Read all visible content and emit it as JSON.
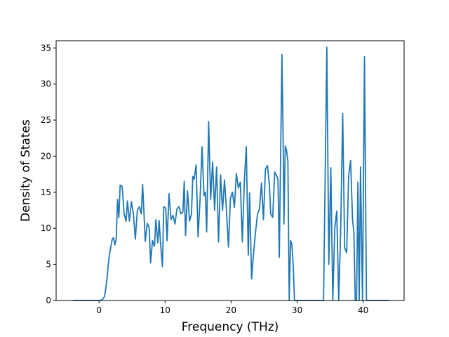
{
  "chart_data": {
    "type": "line",
    "title": "",
    "xlabel": "Frequency (THz)",
    "ylabel": "Density of States",
    "xlim": [
      -6.5,
      46.2
    ],
    "ylim": [
      0,
      36
    ],
    "xticks": [
      0,
      10,
      20,
      30,
      40
    ],
    "yticks": [
      0,
      5,
      10,
      15,
      20,
      25,
      30,
      35
    ],
    "grid": false,
    "legend": "none",
    "series": [
      {
        "color": "#1f77b4",
        "points": [
          [
            -4,
            0
          ],
          [
            -2,
            0
          ],
          [
            0,
            0
          ],
          [
            0.5,
            0.1
          ],
          [
            0.8,
            0.5
          ],
          [
            1.0,
            1.5
          ],
          [
            1.2,
            3.0
          ],
          [
            1.4,
            5.0
          ],
          [
            1.6,
            6.5
          ],
          [
            1.8,
            7.5
          ],
          [
            2.0,
            8.5
          ],
          [
            2.2,
            8.7
          ],
          [
            2.4,
            7.7
          ],
          [
            2.6,
            8.5
          ],
          [
            2.8,
            14.0
          ],
          [
            3.0,
            11.5
          ],
          [
            3.2,
            16.0
          ],
          [
            3.5,
            15.8
          ],
          [
            3.8,
            12.0
          ],
          [
            4.1,
            11.0
          ],
          [
            4.3,
            13.8
          ],
          [
            4.6,
            11.0
          ],
          [
            4.9,
            13.7
          ],
          [
            5.2,
            12.0
          ],
          [
            5.5,
            8.5
          ],
          [
            5.8,
            12.5
          ],
          [
            6.1,
            13.0
          ],
          [
            6.4,
            12.0
          ],
          [
            6.6,
            16.1
          ],
          [
            6.8,
            12.2
          ],
          [
            7.0,
            8.2
          ],
          [
            7.3,
            10.7
          ],
          [
            7.6,
            10.0
          ],
          [
            7.8,
            5.2
          ],
          [
            8.1,
            8.3
          ],
          [
            8.4,
            7.5
          ],
          [
            8.6,
            11.2
          ],
          [
            8.9,
            8.0
          ],
          [
            9.1,
            11.1
          ],
          [
            9.3,
            8.1
          ],
          [
            9.6,
            4.7
          ],
          [
            9.8,
            13.0
          ],
          [
            10.1,
            12.8
          ],
          [
            10.3,
            8.3
          ],
          [
            10.6,
            14.8
          ],
          [
            10.9,
            11.2
          ],
          [
            11.2,
            11.8
          ],
          [
            11.5,
            10.6
          ],
          [
            11.8,
            12.7
          ],
          [
            12.1,
            13.0
          ],
          [
            12.4,
            12.0
          ],
          [
            12.7,
            12.3
          ],
          [
            12.9,
            16.5
          ],
          [
            13.1,
            9.0
          ],
          [
            13.4,
            15.2
          ],
          [
            13.7,
            11.0
          ],
          [
            14.0,
            12.0
          ],
          [
            14.2,
            17.2
          ],
          [
            14.4,
            16.8
          ],
          [
            14.7,
            18.8
          ],
          [
            15.0,
            8.8
          ],
          [
            15.3,
            14.0
          ],
          [
            15.6,
            21.3
          ],
          [
            15.9,
            14.5
          ],
          [
            16.1,
            15.0
          ],
          [
            16.3,
            9.5
          ],
          [
            16.6,
            24.8
          ],
          [
            16.9,
            14.0
          ],
          [
            17.2,
            19.2
          ],
          [
            17.5,
            12.5
          ],
          [
            17.8,
            18.5
          ],
          [
            18.1,
            8.1
          ],
          [
            18.4,
            17.4
          ],
          [
            18.7,
            12.5
          ],
          [
            19.0,
            16.7
          ],
          [
            19.3,
            12.5
          ],
          [
            19.6,
            7.4
          ],
          [
            19.9,
            14.2
          ],
          [
            20.2,
            15.0
          ],
          [
            20.5,
            12.9
          ],
          [
            20.8,
            17.6
          ],
          [
            21.1,
            15.6
          ],
          [
            21.4,
            16.4
          ],
          [
            21.7,
            8.1
          ],
          [
            22.0,
            16.4
          ],
          [
            22.3,
            21.3
          ],
          [
            22.6,
            6.3
          ],
          [
            22.8,
            14.9
          ],
          [
            23.1,
            3.0
          ],
          [
            23.4,
            6.5
          ],
          [
            23.7,
            9.5
          ],
          [
            24.0,
            12.0
          ],
          [
            24.3,
            12.7
          ],
          [
            24.6,
            16.3
          ],
          [
            24.9,
            11.2
          ],
          [
            25.2,
            18.2
          ],
          [
            25.5,
            18.7
          ],
          [
            25.8,
            16.0
          ],
          [
            26.0,
            12.0
          ],
          [
            26.3,
            11.5
          ],
          [
            26.6,
            17.8
          ],
          [
            26.9,
            17.3
          ],
          [
            27.1,
            16.7
          ],
          [
            27.3,
            6.0
          ],
          [
            27.5,
            20.0
          ],
          [
            27.7,
            34.1
          ],
          [
            27.9,
            21.0
          ],
          [
            28.0,
            10.6
          ],
          [
            28.2,
            21.4
          ],
          [
            28.4,
            20.8
          ],
          [
            28.6,
            19.3
          ],
          [
            28.8,
            0.0
          ],
          [
            29.0,
            8.3
          ],
          [
            29.2,
            7.8
          ],
          [
            29.4,
            5.0
          ],
          [
            29.6,
            0.0
          ],
          [
            30.0,
            0.0
          ],
          [
            34.0,
            0.0
          ],
          [
            34.5,
            35.1
          ],
          [
            34.8,
            5.0
          ],
          [
            35.1,
            18.4
          ],
          [
            35.4,
            0.0
          ],
          [
            35.7,
            10.0
          ],
          [
            36.0,
            12.4
          ],
          [
            36.3,
            0.0
          ],
          [
            36.6,
            10.0
          ],
          [
            36.9,
            25.9
          ],
          [
            37.2,
            7.3
          ],
          [
            37.5,
            6.6
          ],
          [
            37.8,
            17.3
          ],
          [
            38.1,
            19.4
          ],
          [
            38.4,
            11.0
          ],
          [
            38.6,
            9.5
          ],
          [
            38.8,
            0.0
          ],
          [
            39.0,
            0.0
          ],
          [
            39.2,
            16.4
          ],
          [
            39.4,
            0.0
          ],
          [
            39.6,
            18.5
          ],
          [
            39.9,
            0.0
          ],
          [
            40.2,
            33.8
          ],
          [
            40.5,
            0.0
          ],
          [
            42.0,
            0.0
          ],
          [
            44.0,
            0.0
          ]
        ]
      }
    ]
  }
}
